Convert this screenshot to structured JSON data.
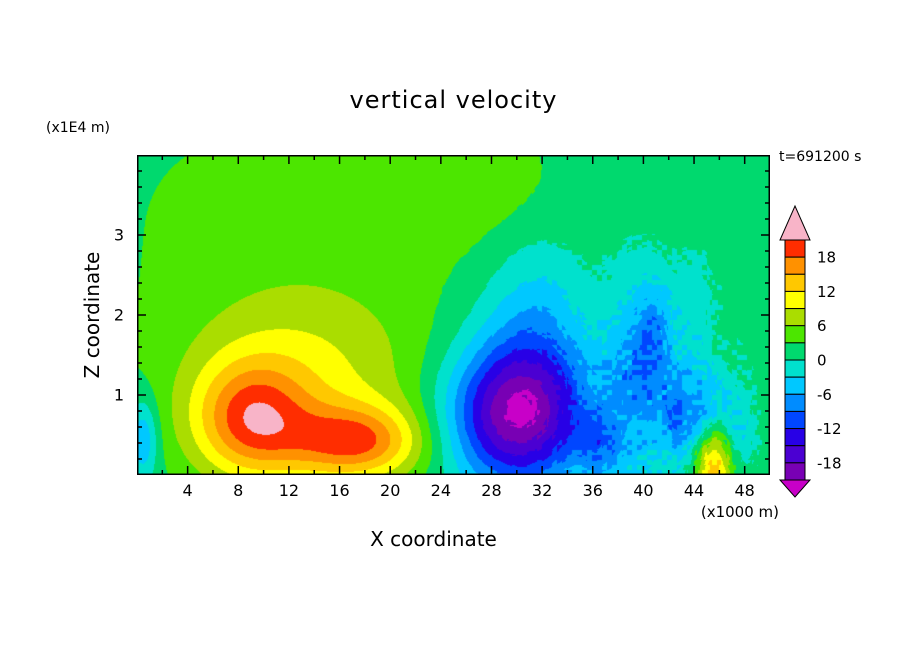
{
  "title": "vertical velocity",
  "time_label": "t=691200 s",
  "x_axis": {
    "label": "X coordinate",
    "units": "(x1000 m)",
    "min": 0,
    "max": 50,
    "tick_labels": [
      4,
      8,
      12,
      16,
      20,
      24,
      28,
      32,
      36,
      40,
      44,
      48
    ],
    "major_step": 4,
    "minor_step": 2
  },
  "y_axis": {
    "label": "Z coordinate",
    "units": "(x1E4 m)",
    "min": 0,
    "max": 4,
    "tick_labels": [
      1,
      2,
      3
    ],
    "major_step": 1,
    "minor_step": 0.2
  },
  "colorbar": {
    "labels": [
      "18",
      "12",
      "6",
      "0",
      "-6",
      "-12",
      "-18"
    ],
    "levels": [
      -21,
      -18,
      -15,
      -12,
      -9,
      -6,
      -3,
      0,
      3,
      6,
      9,
      12,
      15,
      18,
      21
    ],
    "band_colors": [
      "#7800b4",
      "#4b00d2",
      "#2800e6",
      "#0046ff",
      "#008cff",
      "#00c8ff",
      "#00e1cd",
      "#00d96e",
      "#4ce600",
      "#aadd00",
      "#ffff00",
      "#ffc800",
      "#ff9100",
      "#ff2d00"
    ],
    "under_color": "#c800c8",
    "over_color": "#f8b4c8"
  },
  "chart_data": {
    "type": "filled_contour",
    "title": "vertical velocity",
    "xlabel": "X coordinate (x1000 m)",
    "ylabel": "Z coordinate (x1E4 m)",
    "x_range": [
      0,
      50
    ],
    "z_range": [
      0,
      4
    ],
    "contour_interval": 3,
    "value_min": -23,
    "value_max": 21,
    "field": {
      "background": 1.2,
      "gaussians": [
        [
          2.5,
          12.0,
          3.3,
          13.0,
          1.3
        ],
        [
          2.5,
          27.0,
          3.6,
          5.0,
          0.6
        ],
        [
          8.0,
          13.0,
          1.15,
          7.0,
          0.85
        ],
        [
          13.0,
          9.0,
          0.7,
          3.2,
          0.5
        ],
        [
          12.5,
          17.5,
          0.42,
          3.5,
          0.32
        ],
        [
          2.0,
          14.0,
          0.3,
          6.0,
          0.4
        ],
        [
          -22.0,
          30.0,
          0.75,
          3.8,
          0.62
        ],
        [
          -6.0,
          31.5,
          1.9,
          3.0,
          0.8
        ],
        [
          -8.0,
          39.5,
          1.2,
          1.8,
          0.9
        ],
        [
          -9.0,
          44.5,
          0.65,
          1.6,
          0.5
        ],
        [
          16.0,
          45.5,
          0.15,
          1.2,
          0.35
        ],
        [
          -8.0,
          0.5,
          0.45,
          0.8,
          0.35
        ],
        [
          -6.0,
          36.5,
          0.35,
          1.2,
          0.3
        ],
        [
          -5.0,
          41.0,
          1.75,
          1.0,
          0.5
        ],
        [
          -4.0,
          42.5,
          0.8,
          0.8,
          0.4
        ],
        [
          -4.5,
          47.5,
          0.5,
          0.9,
          0.4
        ],
        [
          -3.0,
          44.0,
          2.1,
          1.2,
          0.5
        ]
      ],
      "noise": {
        "amp": 2.2,
        "cx": 41.0,
        "cz": 1.0,
        "sx": 6.5,
        "sz": 1.1,
        "cell": 5
      }
    }
  }
}
